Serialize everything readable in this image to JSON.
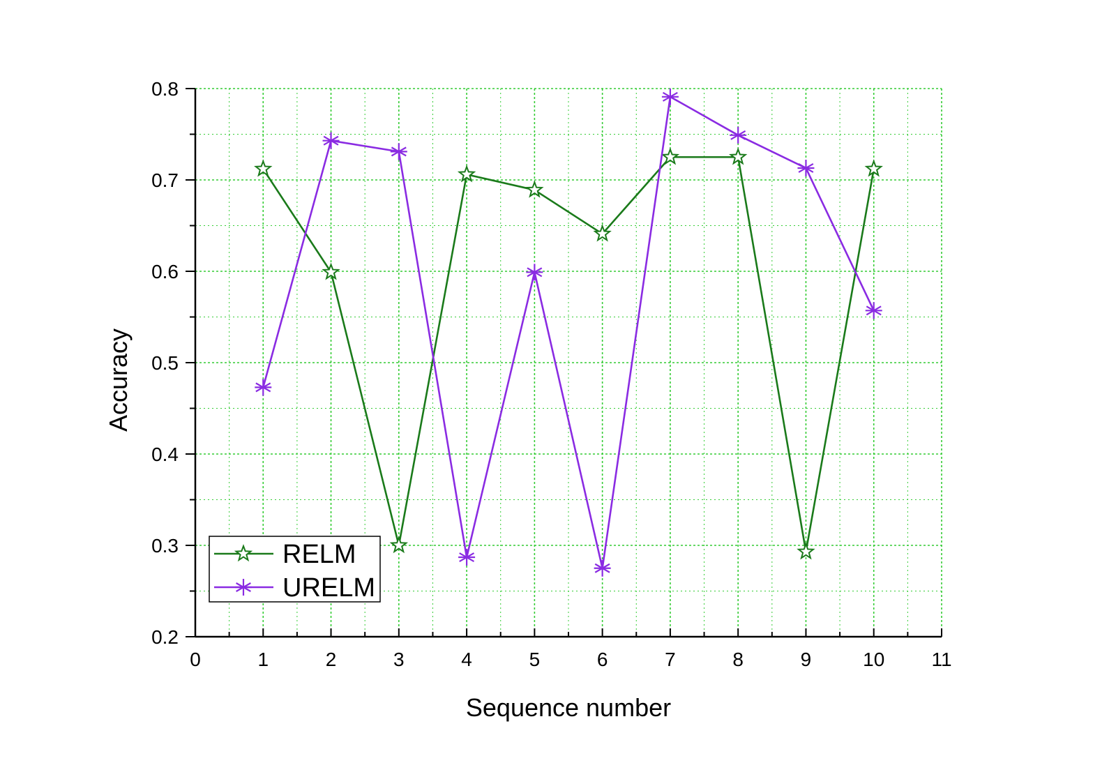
{
  "chart_data": {
    "type": "line",
    "xlabel": "Sequence number",
    "ylabel": "Accuracy",
    "xlim": [
      0,
      11
    ],
    "ylim": [
      0.2,
      0.8
    ],
    "x_ticks": [
      "0",
      "1",
      "2",
      "3",
      "4",
      "5",
      "6",
      "7",
      "8",
      "9",
      "10",
      "11"
    ],
    "y_ticks": [
      "0.2",
      "0.3",
      "0.4",
      "0.5",
      "0.6",
      "0.7",
      "0.8"
    ],
    "grid": true,
    "legend_position": "bottom-left",
    "x": [
      1,
      2,
      3,
      4,
      5,
      6,
      7,
      8,
      9,
      10
    ],
    "series": [
      {
        "name": "RELM",
        "color": "#1a7a1a",
        "marker": "star",
        "values": [
          0.712,
          0.599,
          0.3,
          0.706,
          0.689,
          0.641,
          0.725,
          0.725,
          0.293,
          0.712
        ]
      },
      {
        "name": "URELM",
        "color": "#8a2be2",
        "marker": "asterisk",
        "values": [
          0.473,
          0.743,
          0.731,
          0.287,
          0.599,
          0.275,
          0.791,
          0.749,
          0.713,
          0.557
        ]
      }
    ]
  }
}
